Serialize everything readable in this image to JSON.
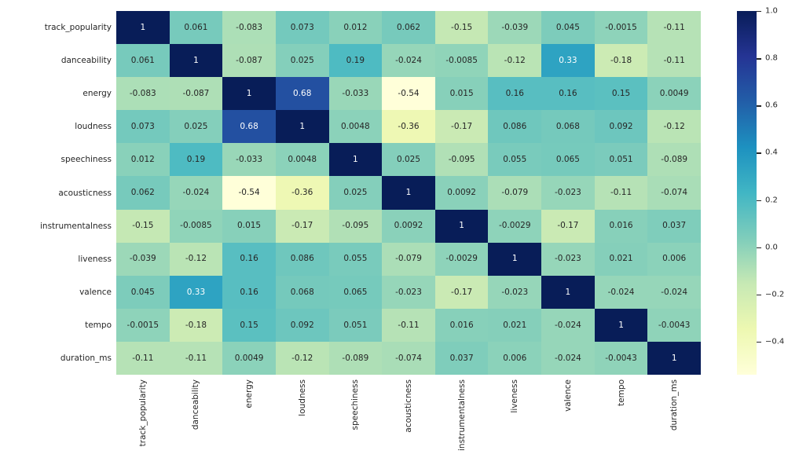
{
  "chart_data": {
    "type": "heatmap",
    "title": "",
    "xlabel": "",
    "ylabel": "",
    "labels": [
      "track_popularity",
      "danceability",
      "energy",
      "loudness",
      "speechiness",
      "acousticness",
      "instrumentalness",
      "liveness",
      "valence",
      "tempo",
      "duration_ms"
    ],
    "matrix": [
      [
        1,
        0.061,
        -0.083,
        0.073,
        0.012,
        0.062,
        -0.15,
        -0.039,
        0.045,
        -0.0015,
        -0.11
      ],
      [
        0.061,
        1,
        -0.087,
        0.025,
        0.19,
        -0.024,
        -0.0085,
        -0.12,
        0.33,
        -0.18,
        -0.11
      ],
      [
        -0.083,
        -0.087,
        1,
        0.68,
        -0.033,
        -0.54,
        0.015,
        0.16,
        0.16,
        0.15,
        0.0049
      ],
      [
        0.073,
        0.025,
        0.68,
        1,
        0.0048,
        -0.36,
        -0.17,
        0.086,
        0.068,
        0.092,
        -0.12
      ],
      [
        0.012,
        0.19,
        -0.033,
        0.0048,
        1,
        0.025,
        -0.095,
        0.055,
        0.065,
        0.051,
        -0.089
      ],
      [
        0.062,
        -0.024,
        -0.54,
        -0.36,
        0.025,
        1,
        0.0092,
        -0.079,
        -0.023,
        -0.11,
        -0.074
      ],
      [
        -0.15,
        -0.0085,
        0.015,
        -0.17,
        -0.095,
        0.0092,
        1,
        -0.0029,
        -0.17,
        0.016,
        0.037
      ],
      [
        -0.039,
        -0.12,
        0.16,
        0.086,
        0.055,
        -0.079,
        -0.0029,
        1,
        -0.023,
        0.021,
        0.006
      ],
      [
        0.045,
        0.33,
        0.16,
        0.068,
        0.065,
        -0.023,
        -0.17,
        -0.023,
        1,
        -0.024,
        -0.024
      ],
      [
        -0.0015,
        -0.18,
        0.15,
        0.092,
        0.051,
        -0.11,
        0.016,
        0.021,
        -0.024,
        1,
        -0.0043
      ],
      [
        -0.11,
        -0.11,
        0.0049,
        -0.12,
        -0.089,
        -0.074,
        0.037,
        0.006,
        -0.024,
        -0.0043,
        1
      ]
    ],
    "vmin": -0.54,
    "vmax": 1.0,
    "colormap": {
      "name": "YlGnBu",
      "stops": [
        "#ffffd9",
        "#edf8b1",
        "#c7e9b4",
        "#7fcdbb",
        "#41b6c4",
        "#1d91c0",
        "#225ea8",
        "#253494",
        "#081d58"
      ]
    },
    "colorbar_ticks": [
      {
        "label": "1.0",
        "value": 1.0
      },
      {
        "label": "0.8",
        "value": 0.8
      },
      {
        "label": "0.6",
        "value": 0.6
      },
      {
        "label": "0.4",
        "value": 0.4
      },
      {
        "label": "0.2",
        "value": 0.2
      },
      {
        "label": "0.0",
        "value": 0.0
      },
      {
        "label": "−0.2",
        "value": -0.2
      },
      {
        "label": "−0.4",
        "value": -0.4
      }
    ],
    "annotation_colors": {
      "dark_text": "#262626",
      "light_text": "#ffffff"
    },
    "tick_label_color": "#262626",
    "background": "#ffffff",
    "grid": false,
    "legend_position": "right-colorbar"
  }
}
